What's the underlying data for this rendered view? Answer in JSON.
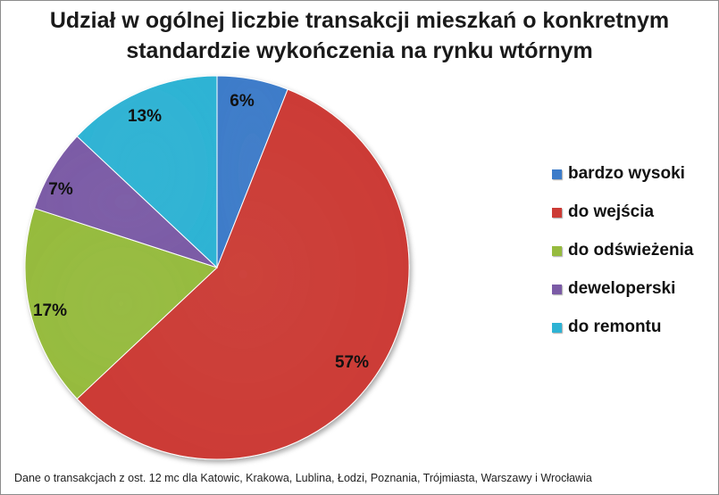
{
  "chart_data": {
    "type": "pie",
    "title": "Udział w ogólnej liczbie transakcji mieszkań o konkretnym standardzie wykończenia na rynku wtórnym",
    "title_lines": [
      "Udział w ogólnej liczbie transakcji mieszkań o konkretnym",
      "standardzie wykończenia na rynku wtórnym"
    ],
    "categories": [
      "bardzo wysoki",
      "do wejścia",
      "do odświeżenia",
      "deweloperski",
      "do remontu"
    ],
    "values": [
      6,
      57,
      17,
      7,
      13
    ],
    "data_labels": [
      "6%",
      "57%",
      "17%",
      "7%",
      "13%"
    ],
    "colors": [
      "#3d7cc9",
      "#cc3b35",
      "#96bb3e",
      "#7b5ba6",
      "#2db3d4"
    ],
    "legend_position": "right",
    "start_angle_deg": 0,
    "direction": "clockwise"
  },
  "footnote": "Dane o transakcjach z ost. 12 mc dla Katowic, Krakowa, Lublina, Łodzi, Poznania, Trójmiasta, Warszawy i Wrocławia"
}
